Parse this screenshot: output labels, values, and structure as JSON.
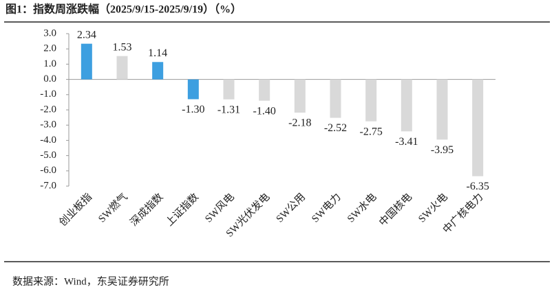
{
  "chart_data": {
    "type": "bar",
    "title": "图1：指数周涨跌幅（2025/9/15-2025/9/19）（%）",
    "source": "数据来源：Wind，东吴证券研究所",
    "categories": [
      "创业板指",
      "SW燃气",
      "深成指数",
      "上证指数",
      "SW风电",
      "SW光伏发电",
      "SW公用",
      "SW电力",
      "SW水电",
      "中国核电",
      "SW火电",
      "中广核电力"
    ],
    "values": [
      2.34,
      1.53,
      1.14,
      -1.3,
      -1.31,
      -1.4,
      -2.18,
      -2.52,
      -2.75,
      -3.41,
      -3.95,
      -6.35
    ],
    "value_labels": [
      "2.34",
      "1.53",
      "1.14",
      "-1.30",
      "-1.31",
      "-1.40",
      "-2.18",
      "-2.52",
      "-2.75",
      "-3.41",
      "-3.95",
      "-6.35"
    ],
    "colors": [
      "#3d9fe0",
      "#d9d9d9",
      "#3d9fe0",
      "#3d9fe0",
      "#d9d9d9",
      "#d9d9d9",
      "#d9d9d9",
      "#d9d9d9",
      "#d9d9d9",
      "#d9d9d9",
      "#d9d9d9",
      "#d9d9d9"
    ],
    "ylim": [
      -7,
      3
    ],
    "yticks": [
      {
        "value": 3,
        "label": "3.0"
      },
      {
        "value": 2,
        "label": "2.0"
      },
      {
        "value": 1,
        "label": "1.0"
      },
      {
        "value": 0,
        "label": "0.0"
      },
      {
        "value": -1,
        "label": "-1.0"
      },
      {
        "value": -2,
        "label": "-2.0"
      },
      {
        "value": -3,
        "label": "-3.0"
      },
      {
        "value": -4,
        "label": "-4.0"
      },
      {
        "value": -5,
        "label": "-5.0"
      },
      {
        "value": -6,
        "label": "-6.0"
      },
      {
        "value": -7,
        "label": "-7.0"
      }
    ]
  }
}
